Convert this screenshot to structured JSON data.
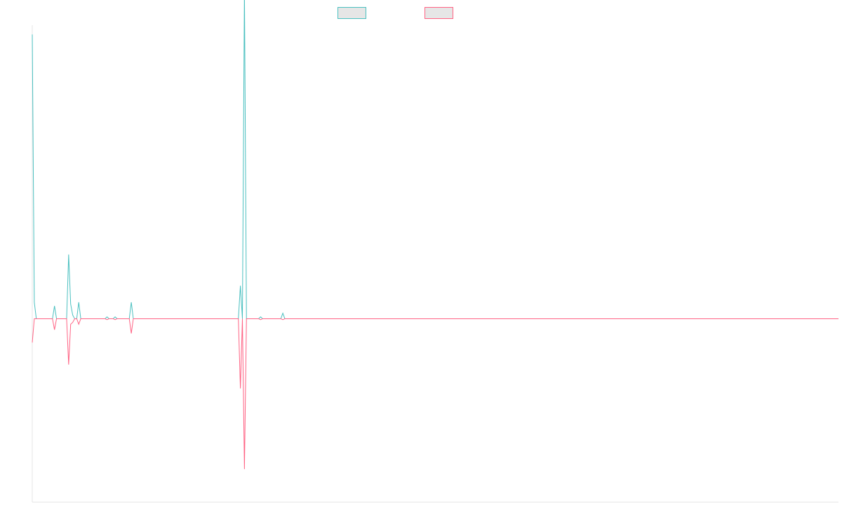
{
  "chart_data": {
    "type": "line",
    "title": "",
    "xlabel": "",
    "ylabel": "",
    "ylim": [
      -1,
      1.6
    ],
    "grid": false,
    "legend": "top",
    "x_count": 400,
    "series": [
      {
        "color": "#4bc0c0",
        "fill": "#e6e6e6",
        "points": [
          [
            0,
            1.55
          ],
          [
            1,
            0.09
          ],
          [
            2,
            0.0
          ],
          [
            3,
            0.0
          ],
          [
            10,
            0.0
          ],
          [
            11,
            0.07
          ],
          [
            12,
            0.0
          ],
          [
            17,
            0.0
          ],
          [
            18,
            0.35
          ],
          [
            19,
            0.08
          ],
          [
            20,
            0.02
          ],
          [
            21,
            0.0
          ],
          [
            22,
            0.0
          ],
          [
            23,
            0.09
          ],
          [
            24,
            0.0
          ],
          [
            36,
            0.0
          ],
          [
            37,
            0.01
          ],
          [
            38,
            0.0
          ],
          [
            40,
            0.0
          ],
          [
            41,
            0.01
          ],
          [
            42,
            0.0
          ],
          [
            48,
            0.0
          ],
          [
            49,
            0.09
          ],
          [
            50,
            0.0
          ],
          [
            102,
            0.0
          ],
          [
            103,
            0.18
          ],
          [
            104,
            0.0
          ],
          [
            105,
            1.8
          ],
          [
            106,
            0.0
          ],
          [
            112,
            0.0
          ],
          [
            113,
            0.01
          ],
          [
            114,
            0.0
          ],
          [
            123,
            0.0
          ],
          [
            124,
            0.03
          ],
          [
            125,
            0.0
          ],
          [
            399,
            0.0
          ]
        ]
      },
      {
        "color": "#ff6384",
        "fill": "#e6e6e6",
        "points": [
          [
            0,
            -0.13
          ],
          [
            1,
            0.0
          ],
          [
            2,
            0.0
          ],
          [
            10,
            0.0
          ],
          [
            11,
            -0.06
          ],
          [
            12,
            0.0
          ],
          [
            17,
            0.0
          ],
          [
            18,
            -0.25
          ],
          [
            19,
            -0.03
          ],
          [
            20,
            -0.02
          ],
          [
            21,
            0.0
          ],
          [
            22,
            0.0
          ],
          [
            23,
            -0.03
          ],
          [
            24,
            0.0
          ],
          [
            36,
            0.0
          ],
          [
            37,
            -0.005
          ],
          [
            38,
            0.0
          ],
          [
            40,
            0.0
          ],
          [
            41,
            -0.005
          ],
          [
            42,
            0.0
          ],
          [
            48,
            0.0
          ],
          [
            49,
            -0.08
          ],
          [
            50,
            0.0
          ],
          [
            102,
            0.0
          ],
          [
            103,
            -0.38
          ],
          [
            104,
            0.0
          ],
          [
            105,
            -0.82
          ],
          [
            106,
            0.0
          ],
          [
            112,
            0.0
          ],
          [
            113,
            -0.005
          ],
          [
            114,
            0.0
          ],
          [
            123,
            0.0
          ],
          [
            124,
            -0.005
          ],
          [
            125,
            0.0
          ],
          [
            399,
            0.0
          ]
        ]
      }
    ]
  }
}
